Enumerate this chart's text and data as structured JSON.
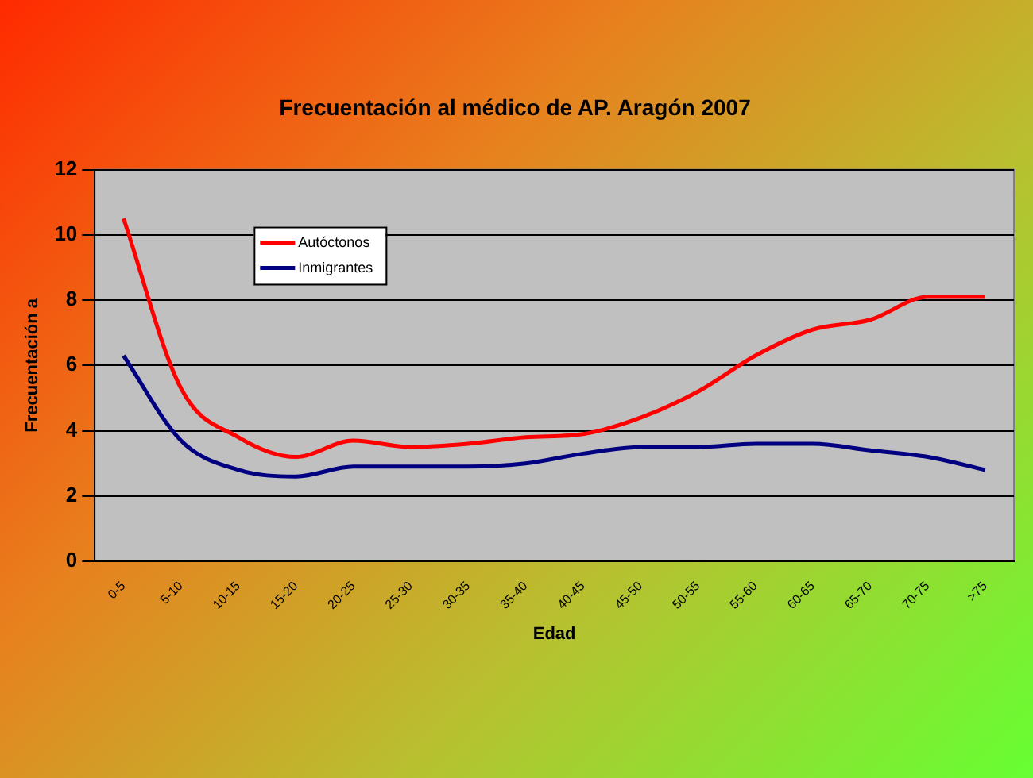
{
  "chart_data": {
    "type": "line",
    "title": "Frecuentación al médico de AP. Aragón 2007",
    "xlabel": "Edad",
    "ylabel": "Frecuentación a",
    "categories": [
      "0-5",
      "5-10",
      "10-15",
      "15-20",
      "20-25",
      "25-30",
      "30-35",
      "35-40",
      "40-45",
      "45-50",
      "50-55",
      "55-60",
      "60-65",
      "65-70",
      "70-75",
      ">75"
    ],
    "series": [
      {
        "name": "Autóctonos",
        "color": "#ff0000",
        "values": [
          10.5,
          5.3,
          3.8,
          3.2,
          3.7,
          3.5,
          3.6,
          3.8,
          3.9,
          4.4,
          5.2,
          6.3,
          7.1,
          7.4,
          8.1,
          8.1
        ]
      },
      {
        "name": "Inmigrantes",
        "color": "#000080",
        "values": [
          6.3,
          3.7,
          2.8,
          2.6,
          2.9,
          2.9,
          2.9,
          3.0,
          3.3,
          3.5,
          3.5,
          3.6,
          3.6,
          3.4,
          3.2,
          2.8
        ]
      }
    ],
    "ylim": [
      0,
      12
    ],
    "yticks": [
      0,
      2,
      4,
      6,
      8,
      10,
      12
    ],
    "grid": "y",
    "legend": "top left",
    "marker": "none",
    "line_style": "solid"
  }
}
